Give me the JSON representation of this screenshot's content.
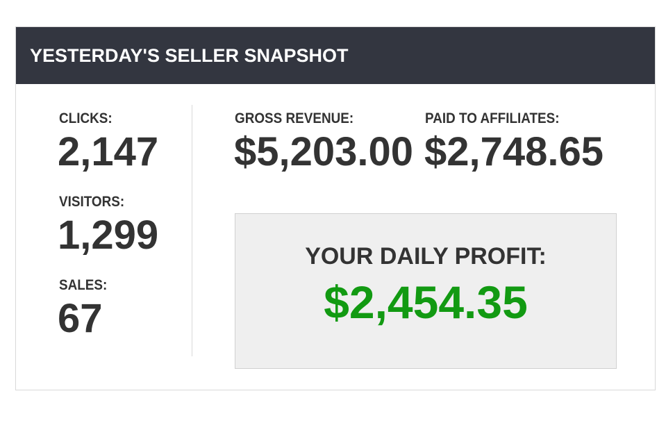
{
  "header": {
    "title": "YESTERDAY'S SELLER SNAPSHOT"
  },
  "stats": [
    {
      "label": "CLICKS:",
      "value": "2,147"
    },
    {
      "label": "VISITORS:",
      "value": "1,299"
    },
    {
      "label": "SALES:",
      "value": "67"
    },
    {
      "label": "GROSS REVENUE:",
      "value": "$5,203.00"
    },
    {
      "label": "PAID TO AFFILIATES:",
      "value": "$2,748.65"
    }
  ],
  "profit": {
    "label": "YOUR DAILY PROFIT:",
    "value": "$2,454.35"
  }
}
